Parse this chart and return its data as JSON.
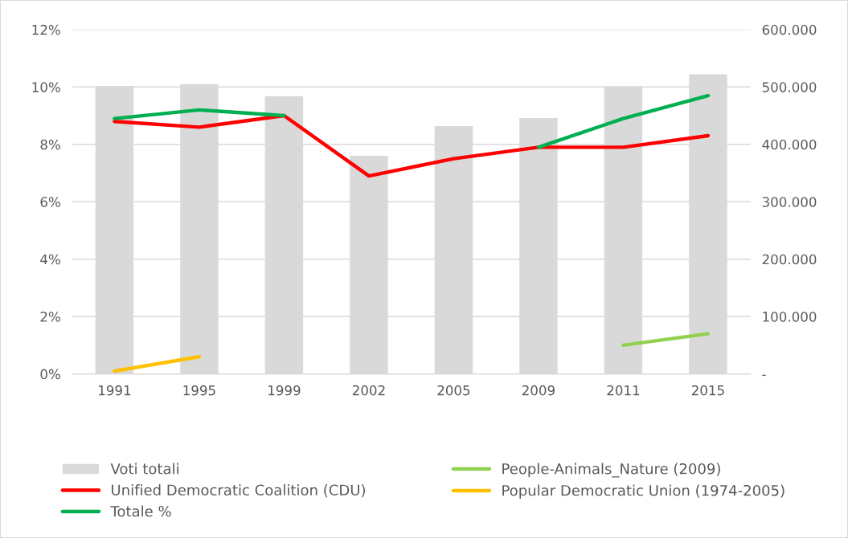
{
  "chart_data": {
    "type": "line",
    "categories": [
      "1991",
      "1995",
      "1999",
      "2002",
      "2005",
      "2009",
      "2011",
      "2015"
    ],
    "series": [
      {
        "name": "Voti totali",
        "type": "bar",
        "axis": "y2",
        "color": "#d9d9d9",
        "values": [
          502000,
          505000,
          484000,
          380000,
          432000,
          446000,
          501000,
          522000
        ]
      },
      {
        "name": "People-Animals_Nature (2009)",
        "color": "#92d050",
        "values": [
          null,
          null,
          null,
          null,
          null,
          null,
          1.0,
          1.4
        ]
      },
      {
        "name": "Unified Democratic Coalition (CDU)",
        "color": "#ff0000",
        "values": [
          8.8,
          8.6,
          9.0,
          6.9,
          7.5,
          7.9,
          7.9,
          8.3
        ]
      },
      {
        "name": "Popular Democratic Union (1974-2005)",
        "color": "#ffc000",
        "values": [
          0.1,
          0.6,
          null,
          null,
          null,
          null,
          null,
          null
        ]
      },
      {
        "name": "Totale %",
        "color": "#00b050",
        "values": [
          8.9,
          9.2,
          9.0,
          null,
          null,
          7.9,
          8.9,
          9.7
        ]
      }
    ],
    "ylim": [
      0,
      12
    ],
    "yticks": [
      {
        "value": 0,
        "label": "0%"
      },
      {
        "value": 2,
        "label": "2%"
      },
      {
        "value": 4,
        "label": "4%"
      },
      {
        "value": 6,
        "label": "6%"
      },
      {
        "value": 8,
        "label": "8%"
      },
      {
        "value": 10,
        "label": "10%"
      },
      {
        "value": 12,
        "label": "12%"
      }
    ],
    "y2lim": [
      0,
      600000
    ],
    "y2ticks": [
      {
        "value": 0,
        "label": "-"
      },
      {
        "value": 100000,
        "label": "100.000"
      },
      {
        "value": 200000,
        "label": "200.000"
      },
      {
        "value": 300000,
        "label": "300.000"
      },
      {
        "value": 400000,
        "label": "400.000"
      },
      {
        "value": 500000,
        "label": "500.000"
      },
      {
        "value": 600000,
        "label": "600.000"
      }
    ],
    "grid": "y",
    "legend": "bottom",
    "marker": "none",
    "line_style": "solid"
  }
}
